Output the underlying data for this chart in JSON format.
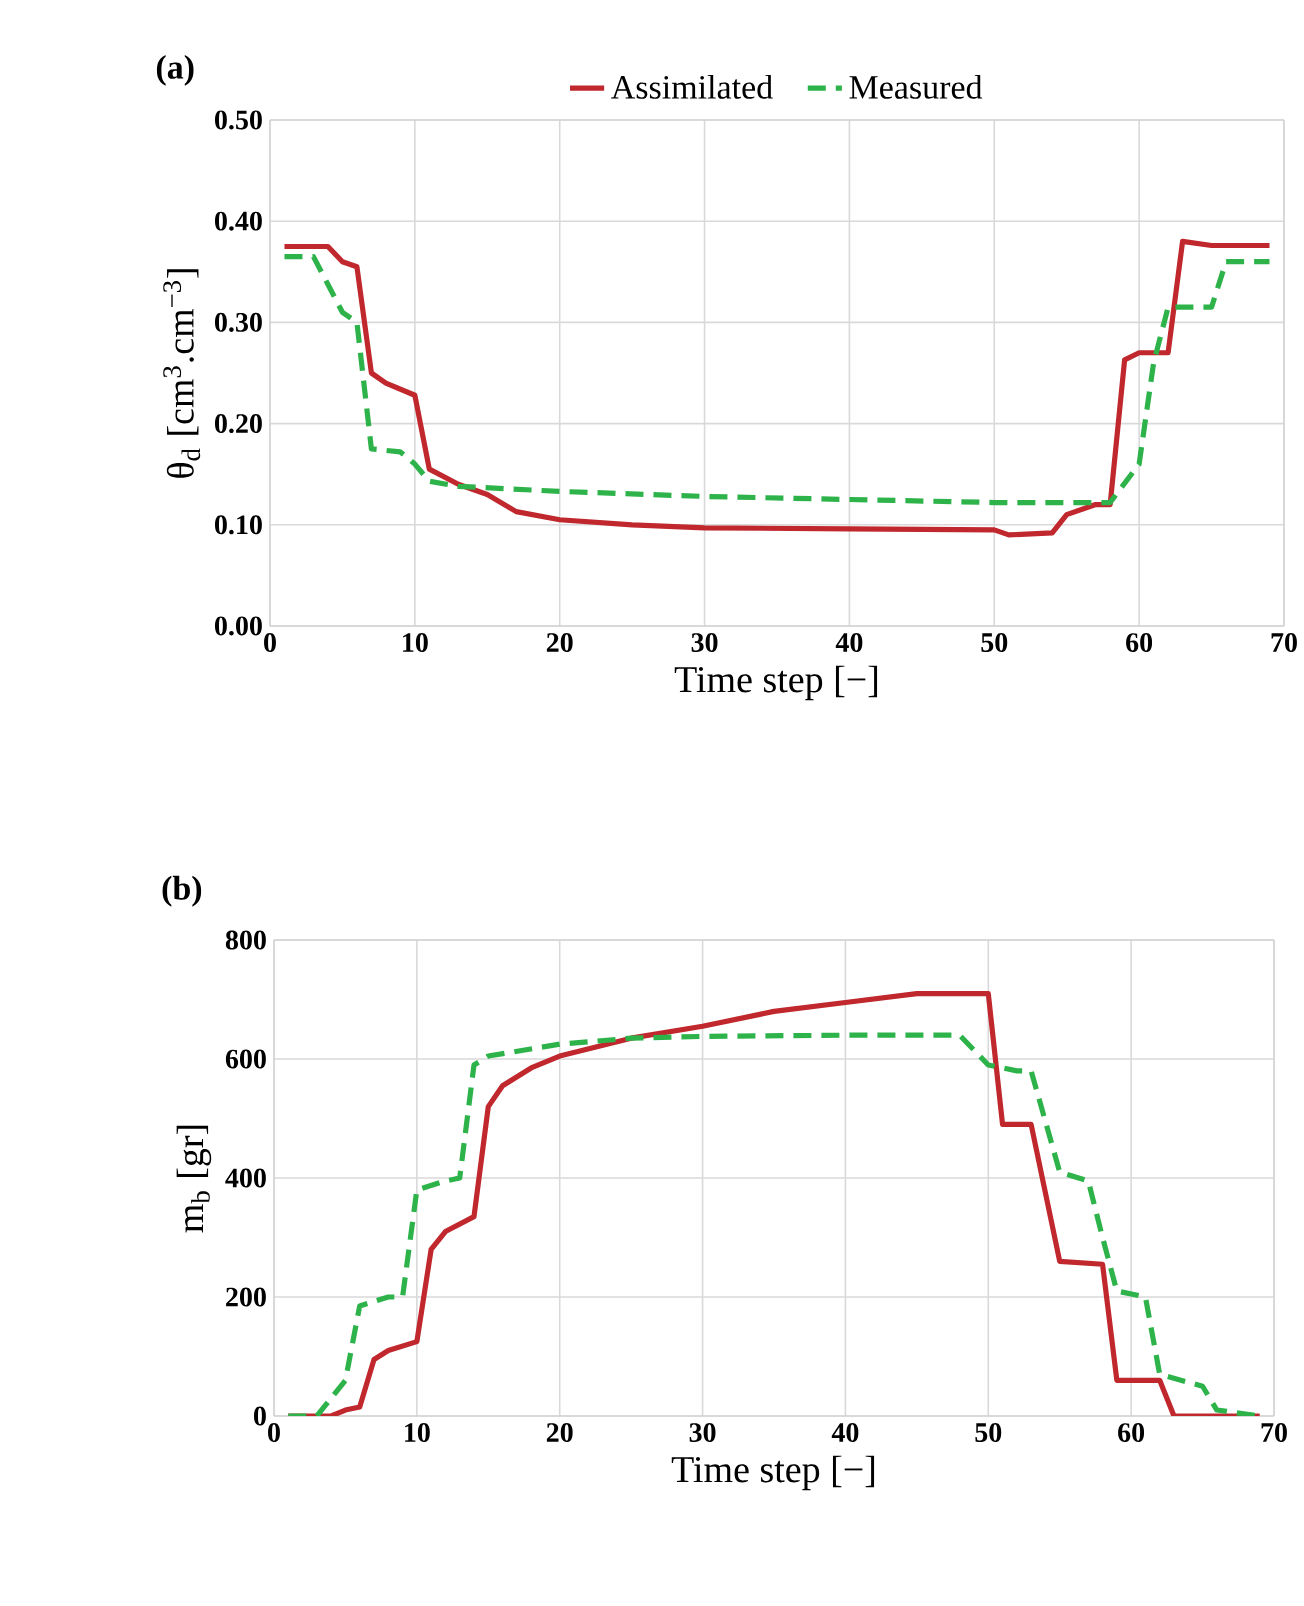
{
  "chart_data": [
    {
      "type": "line",
      "title": "(a)",
      "xlabel": "Time step [−]",
      "ylabel": "θ$_{d}$ [cm$^{3}$.cm$^{−3}$]",
      "xlim": [
        0,
        70
      ],
      "ylim": [
        0,
        0.5
      ],
      "xticks": [
        0,
        10,
        20,
        30,
        40,
        50,
        60,
        70
      ],
      "yticks": [
        {
          "value": 0,
          "label": "0.00"
        },
        {
          "value": 0.1,
          "label": "0.10"
        },
        {
          "value": 0.2,
          "label": "0.20"
        },
        {
          "value": 0.3,
          "label": "0.30"
        },
        {
          "value": 0.4,
          "label": "0.40"
        },
        {
          "value": 0.5,
          "label": "0.50"
        }
      ],
      "grid": true,
      "legend": "top",
      "series": [
        {
          "name": "Assimilated",
          "color": "#c0282d",
          "line_style": "solid",
          "x": [
            1,
            4,
            5,
            6,
            7,
            8,
            10,
            11,
            13,
            15,
            17,
            20,
            25,
            30,
            40,
            50,
            51,
            54,
            55,
            57,
            58,
            59,
            60,
            62,
            63,
            65,
            69
          ],
          "values": [
            0.375,
            0.375,
            0.36,
            0.355,
            0.25,
            0.24,
            0.228,
            0.155,
            0.14,
            0.13,
            0.113,
            0.105,
            0.1,
            0.097,
            0.096,
            0.095,
            0.09,
            0.092,
            0.11,
            0.12,
            0.12,
            0.263,
            0.27,
            0.27,
            0.38,
            0.376,
            0.376
          ]
        },
        {
          "name": "Measured",
          "color": "#2db34a",
          "line_style": "dashed",
          "x": [
            1,
            3,
            5,
            6,
            7,
            9,
            10,
            11,
            13,
            20,
            30,
            40,
            50,
            55,
            58,
            60,
            61,
            62,
            65,
            66,
            69
          ],
          "values": [
            0.365,
            0.365,
            0.31,
            0.3,
            0.175,
            0.172,
            0.16,
            0.143,
            0.138,
            0.133,
            0.128,
            0.125,
            0.122,
            0.122,
            0.122,
            0.16,
            0.26,
            0.315,
            0.315,
            0.36,
            0.36
          ]
        }
      ]
    },
    {
      "type": "line",
      "title": "(b)",
      "xlabel": "Time step [−]",
      "ylabel": "m$_{b}$ [gr]",
      "xlim": [
        0,
        70
      ],
      "ylim": [
        0,
        800
      ],
      "xticks": [
        0,
        10,
        20,
        30,
        40,
        50,
        60,
        70
      ],
      "yticks": [
        0,
        200,
        400,
        600,
        800
      ],
      "grid": true,
      "series": [
        {
          "color": "#c0282d",
          "line_style": "solid",
          "x": [
            1,
            4,
            5,
            6,
            7,
            8,
            10,
            11,
            12,
            14,
            15,
            16,
            18,
            20,
            25,
            30,
            35,
            40,
            45,
            50,
            51,
            53,
            55,
            58,
            59,
            62,
            63,
            69
          ],
          "values": [
            0,
            0,
            10,
            15,
            95,
            110,
            125,
            280,
            310,
            335,
            520,
            555,
            585,
            605,
            635,
            655,
            680,
            695,
            710,
            710,
            490,
            490,
            260,
            255,
            60,
            60,
            0,
            0
          ]
        },
        {
          "color": "#2db34a",
          "line_style": "dashed",
          "x": [
            1,
            3,
            4,
            5,
            6,
            8,
            9,
            10,
            12,
            13,
            14,
            15,
            20,
            25,
            30,
            40,
            48,
            50,
            52,
            53,
            55,
            57,
            58,
            59,
            61,
            62,
            65,
            66,
            69
          ],
          "values": [
            0,
            0,
            30,
            60,
            185,
            200,
            200,
            380,
            395,
            400,
            590,
            605,
            625,
            635,
            638,
            640,
            640,
            590,
            580,
            580,
            410,
            395,
            300,
            210,
            200,
            70,
            50,
            10,
            0
          ]
        }
      ]
    }
  ]
}
